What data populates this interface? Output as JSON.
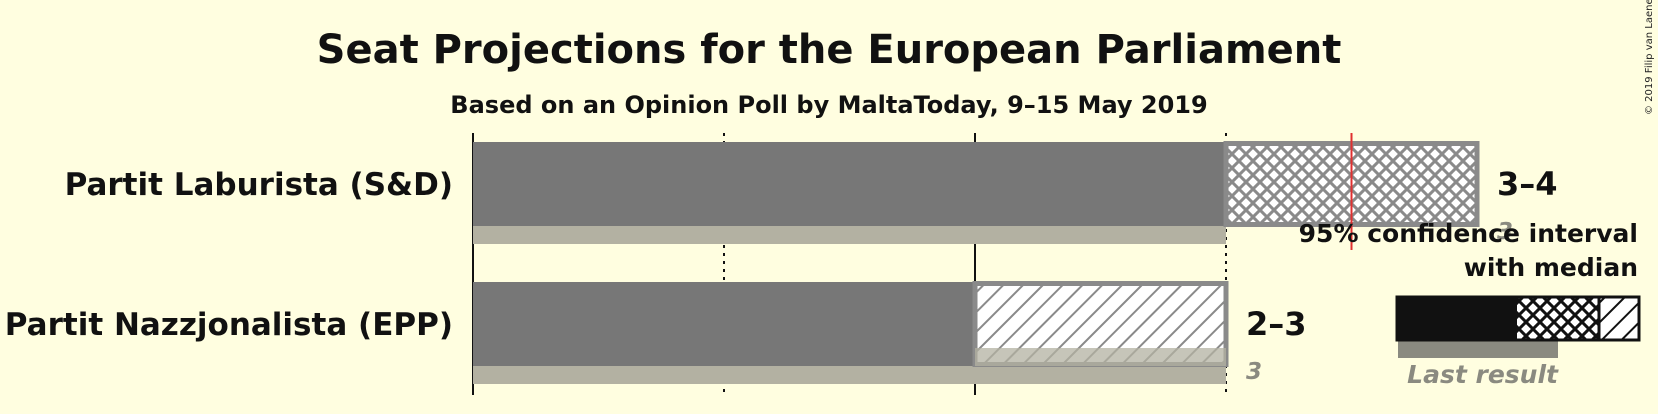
{
  "chart_data": {
    "type": "bar",
    "title": "Seat Projections for the European Parliament",
    "subtitle": "Based on an Opinion Poll by MaltaToday, 9–15 May 2019",
    "x_max_seats": 4,
    "majority_seats": 3.5,
    "series": [
      {
        "name": "Partit Laburista (S&D)",
        "ci_low": 3,
        "ci_high": 4,
        "median": 3,
        "last_result": 3,
        "range_label": "3–4",
        "last_label": "3"
      },
      {
        "name": "Partit Nazzjonalista (EPP)",
        "ci_low": 2,
        "ci_high": 3,
        "median": 3,
        "last_result": 3,
        "range_label": "2–3",
        "last_label": "3"
      }
    ],
    "legend": {
      "line1": "95% confidence interval",
      "line2": "with median",
      "last_result_label": "Last result"
    },
    "copyright": "© 2019 Filip van Laenen",
    "colors": {
      "background": "#FFFEE0",
      "solid": "#777777",
      "hatch": "#8a8a8a",
      "last": "#b3b1a2",
      "majority": "#e03030",
      "legend_solid": "#111111",
      "legend_last": "#8a8a80"
    }
  }
}
